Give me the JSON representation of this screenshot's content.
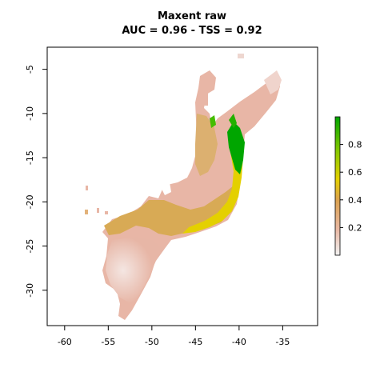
{
  "plot": {
    "title": "Maxent raw",
    "subtitle": "AUC = 0.96 - TSS = 0.92"
  },
  "x_axis": {
    "ticks": [
      -60,
      -55,
      -50,
      -45,
      -40,
      -35
    ],
    "tick_labels": [
      "-60",
      "-55",
      "-50",
      "-45",
      "-40",
      "-35"
    ],
    "range": [
      -62,
      -31
    ]
  },
  "y_axis": {
    "ticks": [
      -5,
      -10,
      -15,
      -20,
      -25,
      -30
    ],
    "tick_labels": [
      "-5",
      "-10",
      "-15",
      "-20",
      "-25",
      "-30"
    ],
    "range": [
      -34,
      -2.5
    ]
  },
  "legend": {
    "ticks": [
      0.2,
      0.4,
      0.6,
      0.8
    ],
    "tick_labels": [
      "0.2",
      "0.4",
      "0.6",
      "0.8"
    ],
    "range": [
      0,
      1
    ],
    "colors": [
      "#f2f2f2",
      "#e9b9a6",
      "#dba14e",
      "#e4d000",
      "#88c800",
      "#00a600"
    ]
  },
  "colors": {
    "low": "#eab7a5",
    "mid": "#d9a94a",
    "high": "#00a600",
    "yellow": "#e6e000"
  }
}
